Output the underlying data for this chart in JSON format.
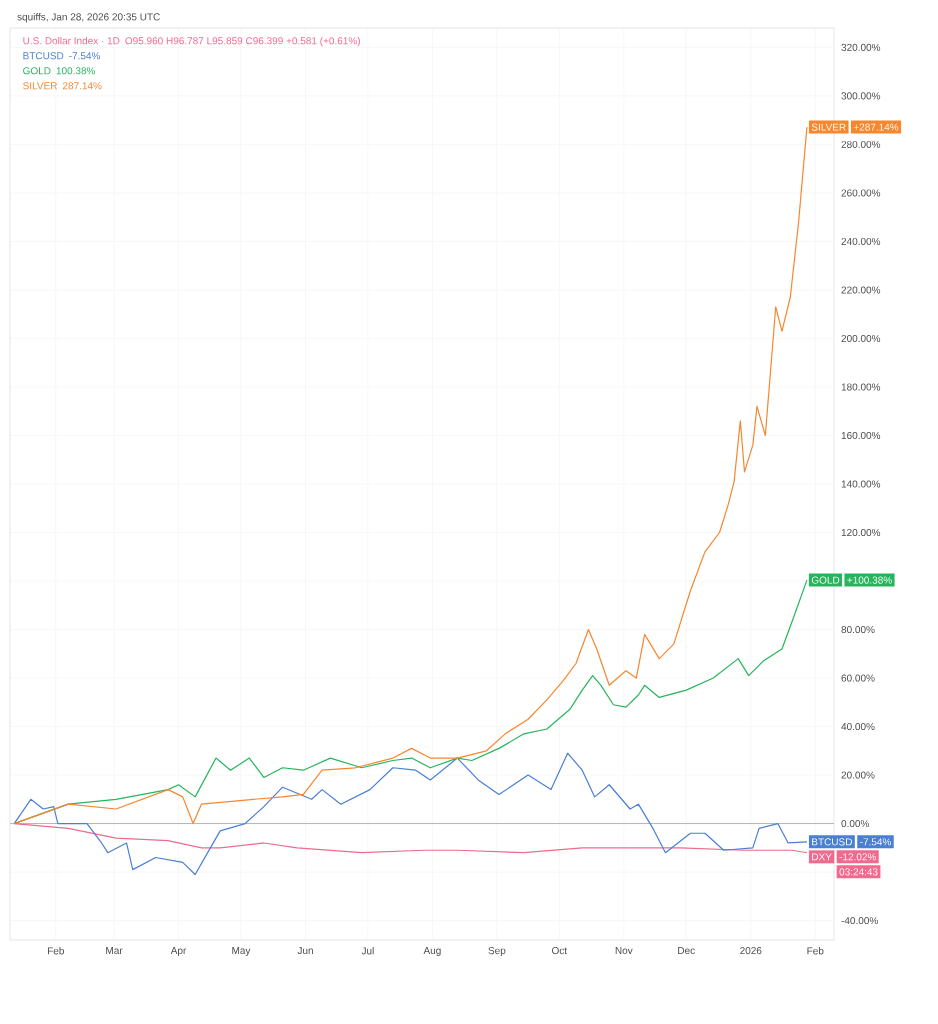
{
  "chart_data": {
    "type": "line",
    "title": "squiffs, Jan 28, 2026 20:35 UTC",
    "series": [
      {
        "name": "U.S. Dollar Index · 1D",
        "color": "#ef6a8e",
        "x": [
          "2025-01-12",
          "2025-02-07",
          "2025-03-02",
          "2025-03-27",
          "2025-04-12",
          "2025-04-21",
          "2025-05-12",
          "2025-05-28",
          "2025-06-28",
          "2025-07-28",
          "2025-08-13",
          "2025-09-14",
          "2025-10-12",
          "2025-11-11",
          "2025-11-28",
          "2025-12-29",
          "2026-01-21",
          "2026-01-28"
        ],
        "values": [
          0,
          -2,
          -6,
          -7,
          -10,
          -10,
          -8,
          -10,
          -12,
          -11,
          -11,
          -12,
          -10,
          -10,
          -10,
          -11,
          -11,
          -12.02
        ]
      },
      {
        "name": "BTCUSD",
        "color": "#4a7fd4",
        "x": [
          "2025-01-12",
          "2025-01-20",
          "2025-01-26",
          "2025-01-31",
          "2025-02-02",
          "2025-02-16",
          "2025-02-23",
          "2025-02-26",
          "2025-03-07",
          "2025-03-10",
          "2025-03-21",
          "2025-04-03",
          "2025-04-09",
          "2025-04-15",
          "2025-04-21",
          "2025-05-03",
          "2025-05-12",
          "2025-05-21",
          "2025-06-04",
          "2025-06-09",
          "2025-06-18",
          "2025-07-02",
          "2025-07-13",
          "2025-07-24",
          "2025-07-31",
          "2025-08-13",
          "2025-08-23",
          "2025-09-02",
          "2025-09-16",
          "2025-09-27",
          "2025-10-05",
          "2025-10-12",
          "2025-10-18",
          "2025-10-25",
          "2025-11-04",
          "2025-11-08",
          "2025-11-15",
          "2025-11-21",
          "2025-12-03",
          "2025-12-10",
          "2025-12-19",
          "2026-01-02",
          "2026-01-05",
          "2026-01-14",
          "2026-01-19",
          "2026-01-28"
        ],
        "values": [
          0,
          10,
          6,
          7,
          0,
          0,
          -8,
          -12,
          -8,
          -19,
          -14,
          -16,
          -21,
          -12,
          -3,
          0,
          7,
          15,
          10,
          14,
          8,
          14,
          23,
          22,
          18,
          27,
          18,
          12,
          20,
          14,
          29,
          22,
          11,
          16,
          6,
          8,
          -2,
          -12,
          -4,
          -4,
          -11,
          -10,
          -2,
          0,
          -8,
          -7.54
        ]
      },
      {
        "name": "GOLD",
        "color": "#26b55c",
        "x": [
          "2025-01-12",
          "2025-02-07",
          "2025-03-02",
          "2025-03-27",
          "2025-04-01",
          "2025-04-09",
          "2025-04-19",
          "2025-04-26",
          "2025-05-05",
          "2025-05-12",
          "2025-05-21",
          "2025-05-31",
          "2025-06-13",
          "2025-06-28",
          "2025-07-13",
          "2025-07-22",
          "2025-07-31",
          "2025-08-13",
          "2025-08-20",
          "2025-09-02",
          "2025-09-14",
          "2025-09-25",
          "2025-10-06",
          "2025-10-12",
          "2025-10-17",
          "2025-10-21",
          "2025-10-27",
          "2025-11-02",
          "2025-11-08",
          "2025-11-11",
          "2025-11-18",
          "2025-12-01",
          "2025-12-14",
          "2025-12-26",
          "2025-12-31",
          "2026-01-07",
          "2026-01-16",
          "2026-01-22",
          "2026-01-28"
        ],
        "values": [
          0,
          8,
          10,
          14,
          16,
          11,
          27,
          22,
          27,
          19,
          23,
          22,
          27,
          23,
          26,
          27,
          23,
          27,
          26,
          31,
          37,
          39,
          47,
          55,
          61,
          57,
          49,
          48,
          53,
          57,
          52,
          55,
          60,
          68,
          61,
          67,
          72,
          86,
          100.38
        ]
      },
      {
        "name": "SILVER",
        "color": "#f7862f",
        "x": [
          "2025-01-12",
          "2025-02-07",
          "2025-03-02",
          "2025-03-27",
          "2025-04-03",
          "2025-04-08",
          "2025-04-12",
          "2025-05-07",
          "2025-05-21",
          "2025-05-31",
          "2025-06-09",
          "2025-06-25",
          "2025-07-13",
          "2025-07-22",
          "2025-07-31",
          "2025-08-13",
          "2025-08-27",
          "2025-09-05",
          "2025-09-16",
          "2025-09-25",
          "2025-10-03",
          "2025-10-09",
          "2025-10-15",
          "2025-10-19",
          "2025-10-25",
          "2025-11-02",
          "2025-11-07",
          "2025-11-11",
          "2025-11-18",
          "2025-11-25",
          "2025-12-03",
          "2025-12-10",
          "2025-12-17",
          "2025-12-21",
          "2025-12-24",
          "2025-12-27",
          "2025-12-29",
          "2026-01-02",
          "2026-01-04",
          "2026-01-08",
          "2026-01-13",
          "2026-01-16",
          "2026-01-20",
          "2026-01-24",
          "2026-01-28"
        ],
        "values": [
          0,
          8,
          6,
          14,
          11,
          0,
          8,
          10,
          11,
          12,
          22,
          23,
          27,
          31,
          27,
          27,
          30,
          37,
          43,
          51,
          59,
          66,
          80,
          72,
          57,
          63,
          60,
          78,
          68,
          74,
          96,
          112,
          120,
          131,
          141,
          166,
          145,
          156,
          172,
          160,
          213,
          203,
          217,
          248,
          287.14
        ]
      }
    ],
    "xlim": [
      "2025-01-10",
      "2026-02-10"
    ],
    "xticks": [
      {
        "value": "2025-02-01",
        "label": "Feb"
      },
      {
        "value": "2025-03-01",
        "label": "Mar"
      },
      {
        "value": "2025-04-01",
        "label": "Apr"
      },
      {
        "value": "2025-05-01",
        "label": "May"
      },
      {
        "value": "2025-06-01",
        "label": "Jun"
      },
      {
        "value": "2025-07-01",
        "label": "Jul"
      },
      {
        "value": "2025-08-01",
        "label": "Aug"
      },
      {
        "value": "2025-09-01",
        "label": "Sep"
      },
      {
        "value": "2025-10-01",
        "label": "Oct"
      },
      {
        "value": "2025-11-01",
        "label": "Nov"
      },
      {
        "value": "2025-12-01",
        "label": "Dec"
      },
      {
        "value": "2026-01-01",
        "label": "2026"
      },
      {
        "value": "2026-02-01",
        "label": "Feb"
      }
    ],
    "ylim": [
      -48,
      328
    ],
    "yticks": [
      {
        "value": 320,
        "label": "320.00%"
      },
      {
        "value": 300,
        "label": "300.00%"
      },
      {
        "value": 280,
        "label": "280.00%"
      },
      {
        "value": 260,
        "label": "260.00%"
      },
      {
        "value": 240,
        "label": "240.00%"
      },
      {
        "value": 220,
        "label": "220.00%"
      },
      {
        "value": 200,
        "label": "200.00%"
      },
      {
        "value": 180,
        "label": "180.00%"
      },
      {
        "value": 160,
        "label": "160.00%"
      },
      {
        "value": 140,
        "label": "140.00%"
      },
      {
        "value": 120,
        "label": "120.00%"
      },
      {
        "value": 100,
        "label": null
      },
      {
        "value": 80,
        "label": "80.00%"
      },
      {
        "value": 60,
        "label": "60.00%"
      },
      {
        "value": 40,
        "label": "40.00%"
      },
      {
        "value": 20,
        "label": "20.00%"
      },
      {
        "value": 0,
        "label": "0.00%"
      },
      {
        "value": -20,
        "label": null
      },
      {
        "value": -40,
        "label": "-40.00%"
      }
    ],
    "ref_lines": [
      {
        "axis": "y",
        "value": 0,
        "color": "#b2b5be"
      }
    ],
    "grid": true,
    "legend": "top left",
    "marker": "none",
    "line_style": "solid",
    "annotations": [
      "O95.960 H96.787 L95.859 C96.399 +0.581 (+0.61%)",
      "-7.54%",
      "100.38%",
      "287.14%",
      {
        "text": "SILVER",
        "x": "2026-01-28",
        "y": 287.14
      },
      {
        "text": "GOLD",
        "x": "2026-01-28",
        "y": 100.38
      },
      {
        "text": "BTCUSD",
        "x": "2026-01-28",
        "y": -7.54
      },
      {
        "text": "DXY",
        "x": "2026-01-28",
        "y": -12.02
      },
      "+287.14%",
      "+100.38%",
      "-7.54%",
      "-12.02%",
      "03:24:43"
    ]
  }
}
